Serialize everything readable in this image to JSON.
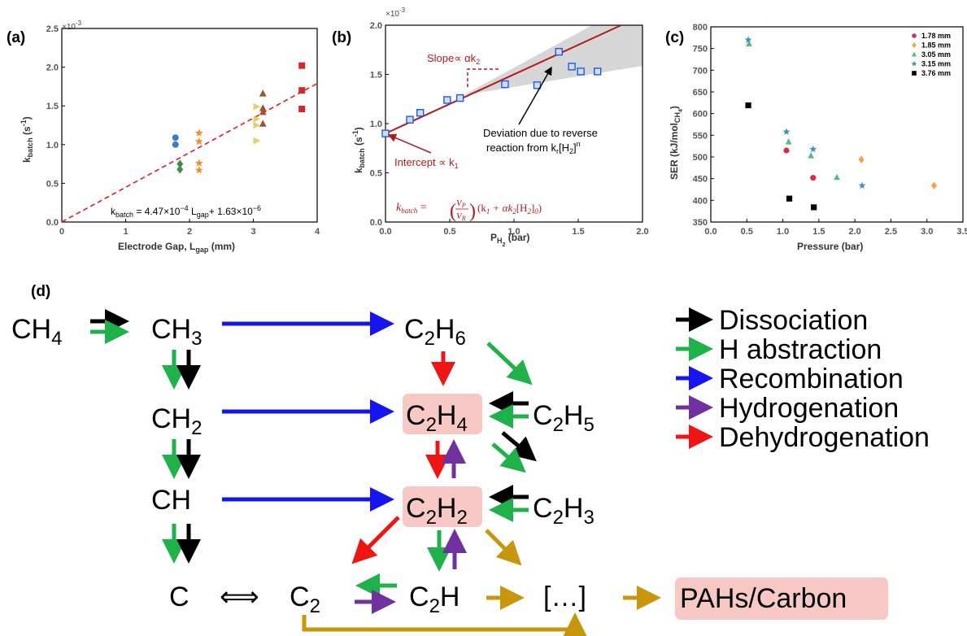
{
  "chart_data": [
    {
      "type": "scatter",
      "panel": "(a)",
      "multiplier": "×10",
      "multiplier_exp": "-3",
      "xlabel": "Electrode Gap, L",
      "xlabel_sub": "gap",
      "xlabel_unit": "(mm)",
      "ylabel": "k",
      "ylabel_sub": "batch",
      "ylabel_unit": "(s",
      "ylabel_exp": "-1",
      "xlim": [
        0,
        4
      ],
      "ylim": [
        0,
        2.5
      ],
      "xticks": [
        "0",
        "1",
        "2",
        "3",
        "4"
      ],
      "yticks": [
        "0.0",
        "0.5",
        "1.0",
        "1.5",
        "2.0",
        "2.5"
      ],
      "series": [
        {
          "marker": "circle",
          "color": "#3b7dc4",
          "x": [
            1.78,
            1.78
          ],
          "y": [
            1.09,
            1.0
          ]
        },
        {
          "marker": "diamond",
          "color": "#3e8e4e",
          "x": [
            1.85,
            1.85
          ],
          "y": [
            0.75,
            0.68
          ]
        },
        {
          "marker": "star",
          "color": "#f28c28",
          "x": [
            2.15,
            2.15,
            2.15,
            2.15
          ],
          "y": [
            1.15,
            1.04,
            0.76,
            0.67
          ]
        },
        {
          "marker": "triangle-right",
          "color": "#e0d070",
          "x": [
            3.05,
            3.05,
            3.05,
            3.05
          ],
          "y": [
            1.49,
            1.33,
            1.25,
            1.05
          ]
        },
        {
          "marker": "triangle-up",
          "color": "#a0522d",
          "x": [
            3.15,
            3.15,
            3.15,
            3.15
          ],
          "y": [
            1.66,
            1.47,
            1.42,
            1.27
          ]
        },
        {
          "marker": "square",
          "color": "#d62728",
          "x": [
            3.76,
            3.76,
            3.76
          ],
          "y": [
            2.02,
            1.7,
            1.46
          ]
        }
      ],
      "fit": {
        "slope": 0.447,
        "intercept": 0.00163,
        "color": "#e02020"
      },
      "equation": "k",
      "equation_sub": "batch",
      "equation_rest": " = 4.47×10",
      "equation_exp1": "−4",
      "equation_mid": " L",
      "equation_sub2": "gap",
      "equation_end": "+ 1.63×10",
      "equation_exp2": "−6"
    },
    {
      "type": "scatter",
      "panel": "(b)",
      "multiplier": "×10",
      "multiplier_exp": "-3",
      "xlabel": "P",
      "xlabel_sub": "H",
      "xlabel_sub2": "2",
      "xlabel_unit": "(bar)",
      "ylabel": "k",
      "ylabel_sub": "batch",
      "ylabel_unit": "(s",
      "ylabel_exp": "-1",
      "xlim": [
        0,
        2.0
      ],
      "ylim": [
        0,
        2.0
      ],
      "xticks": [
        "0.0",
        "0.5",
        "1.0",
        "1.5",
        "2.0"
      ],
      "yticks": [
        "0.0",
        "0.5",
        "1.0",
        "1.5",
        "2.0"
      ],
      "points": {
        "x": [
          0.0,
          0.19,
          0.27,
          0.48,
          0.58,
          0.93,
          1.18,
          1.35,
          1.45,
          1.52,
          1.65
        ],
        "y": [
          0.9,
          1.04,
          1.11,
          1.24,
          1.26,
          1.4,
          1.39,
          1.73,
          1.58,
          1.53,
          1.53
        ]
      },
      "fit": {
        "slope": 0.6,
        "intercept": 0.9,
        "color": "#b01c1c"
      },
      "slope_label": "Slope∝ αk",
      "slope_label_sub": "2",
      "intercept_label": "Intercept ∝ k",
      "intercept_label_sub": "1",
      "deviation_line1": "Deviation due to reverse",
      "deviation_line2": "reaction from k",
      "deviation_r": "r",
      "deviation_h": "[H",
      "deviation_h_sub": "2",
      "deviation_n": "]",
      "deviation_exp": "n",
      "formula_lhs": "k",
      "formula_lhs_sub": "batch",
      "formula_eq": " = ",
      "formula_vp": "V",
      "formula_vp_sub": "P",
      "formula_vr": "V",
      "formula_vr_sub": "R",
      "formula_rest": "(k",
      "formula_k1_sub": "1",
      "formula_plus": " + αk",
      "formula_k2_sub": "2",
      "formula_h": "[H",
      "formula_h_sub": "2",
      "formula_end": "]",
      "formula_end_sub": "0",
      "formula_close": ")"
    },
    {
      "type": "scatter",
      "panel": "(c)",
      "xlabel": "Pressure (bar)",
      "ylabel": "SER (kJ/mol",
      "ylabel_sub": "CH",
      "ylabel_sub2": "4",
      "ylabel_close": ")",
      "xlim": [
        0,
        3.5
      ],
      "ylim": [
        350,
        800
      ],
      "xticks": [
        "0.0",
        "0.5",
        "1.0",
        "1.5",
        "2.0",
        "2.5",
        "3.0",
        "3.5"
      ],
      "yticks": [
        "350",
        "400",
        "450",
        "500",
        "550",
        "600",
        "650",
        "700",
        "750",
        "800"
      ],
      "series": [
        {
          "name": "1.78 mm",
          "marker": "circle",
          "color": "#d62d4a",
          "x": [
            1.05,
            1.42
          ],
          "y": [
            515,
            452
          ]
        },
        {
          "name": "1.85 mm",
          "marker": "diamond",
          "color": "#f4a442",
          "x": [
            2.09,
            3.1
          ],
          "y": [
            494,
            434
          ]
        },
        {
          "name": "3.05 mm",
          "marker": "triangle-up",
          "color": "#5cb88a",
          "x": [
            0.53,
            1.08,
            1.39,
            1.75
          ],
          "y": [
            761,
            535,
            503,
            453
          ]
        },
        {
          "name": "3.15 mm",
          "marker": "star",
          "color": "#3a8fc4",
          "x": [
            0.52,
            1.05,
            1.42,
            2.1
          ],
          "y": [
            770,
            558,
            518,
            434
          ]
        },
        {
          "name": "3.76 mm",
          "marker": "square",
          "color": "#000000",
          "x": [
            0.52,
            1.09,
            1.43
          ],
          "y": [
            619,
            404,
            384
          ]
        }
      ],
      "legend": "top-right"
    }
  ],
  "diagram": {
    "panel": "(d)",
    "species": {
      "ch4": [
        "CH",
        "4"
      ],
      "ch3": [
        "CH",
        "3"
      ],
      "ch2": [
        "CH",
        "2"
      ],
      "ch": [
        "CH",
        ""
      ],
      "c": [
        "C",
        ""
      ],
      "c2h6_a": "C",
      "c2h6_b": "2",
      "c2h6_c": "H",
      "c2h6_d": "6",
      "c2h4_a": "C",
      "c2h4_b": "2",
      "c2h4_c": "H",
      "c2h4_d": "4",
      "c2h5_a": "C",
      "c2h5_b": "2",
      "c2h5_c": "H",
      "c2h5_d": "5",
      "c2h2_a": "C",
      "c2h2_b": "2",
      "c2h2_c": "H",
      "c2h2_d": "2",
      "c2h3_a": "C",
      "c2h3_b": "2",
      "c2h3_c": "H",
      "c2h3_d": "3",
      "c2_a": "C",
      "c2_b": "2",
      "c2h_a": "C",
      "c2h_b": "2",
      "c2h_c": "H",
      "ellipsis": "[…]",
      "pah": "PAHs/Carbon",
      "equiv": "⟺"
    },
    "legend": [
      {
        "label": "Dissociation",
        "color": "#000000"
      },
      {
        "label": "H abstraction",
        "color": "#1fb24a"
      },
      {
        "label": "Recombination",
        "color": "#1515f0"
      },
      {
        "label": "Hydrogenation",
        "color": "#7030a0"
      },
      {
        "label": "Dehydrogenation",
        "color": "#f01515"
      }
    ],
    "colors": {
      "pathway": "#c8960c",
      "highlight": "#f8c8c4"
    }
  }
}
